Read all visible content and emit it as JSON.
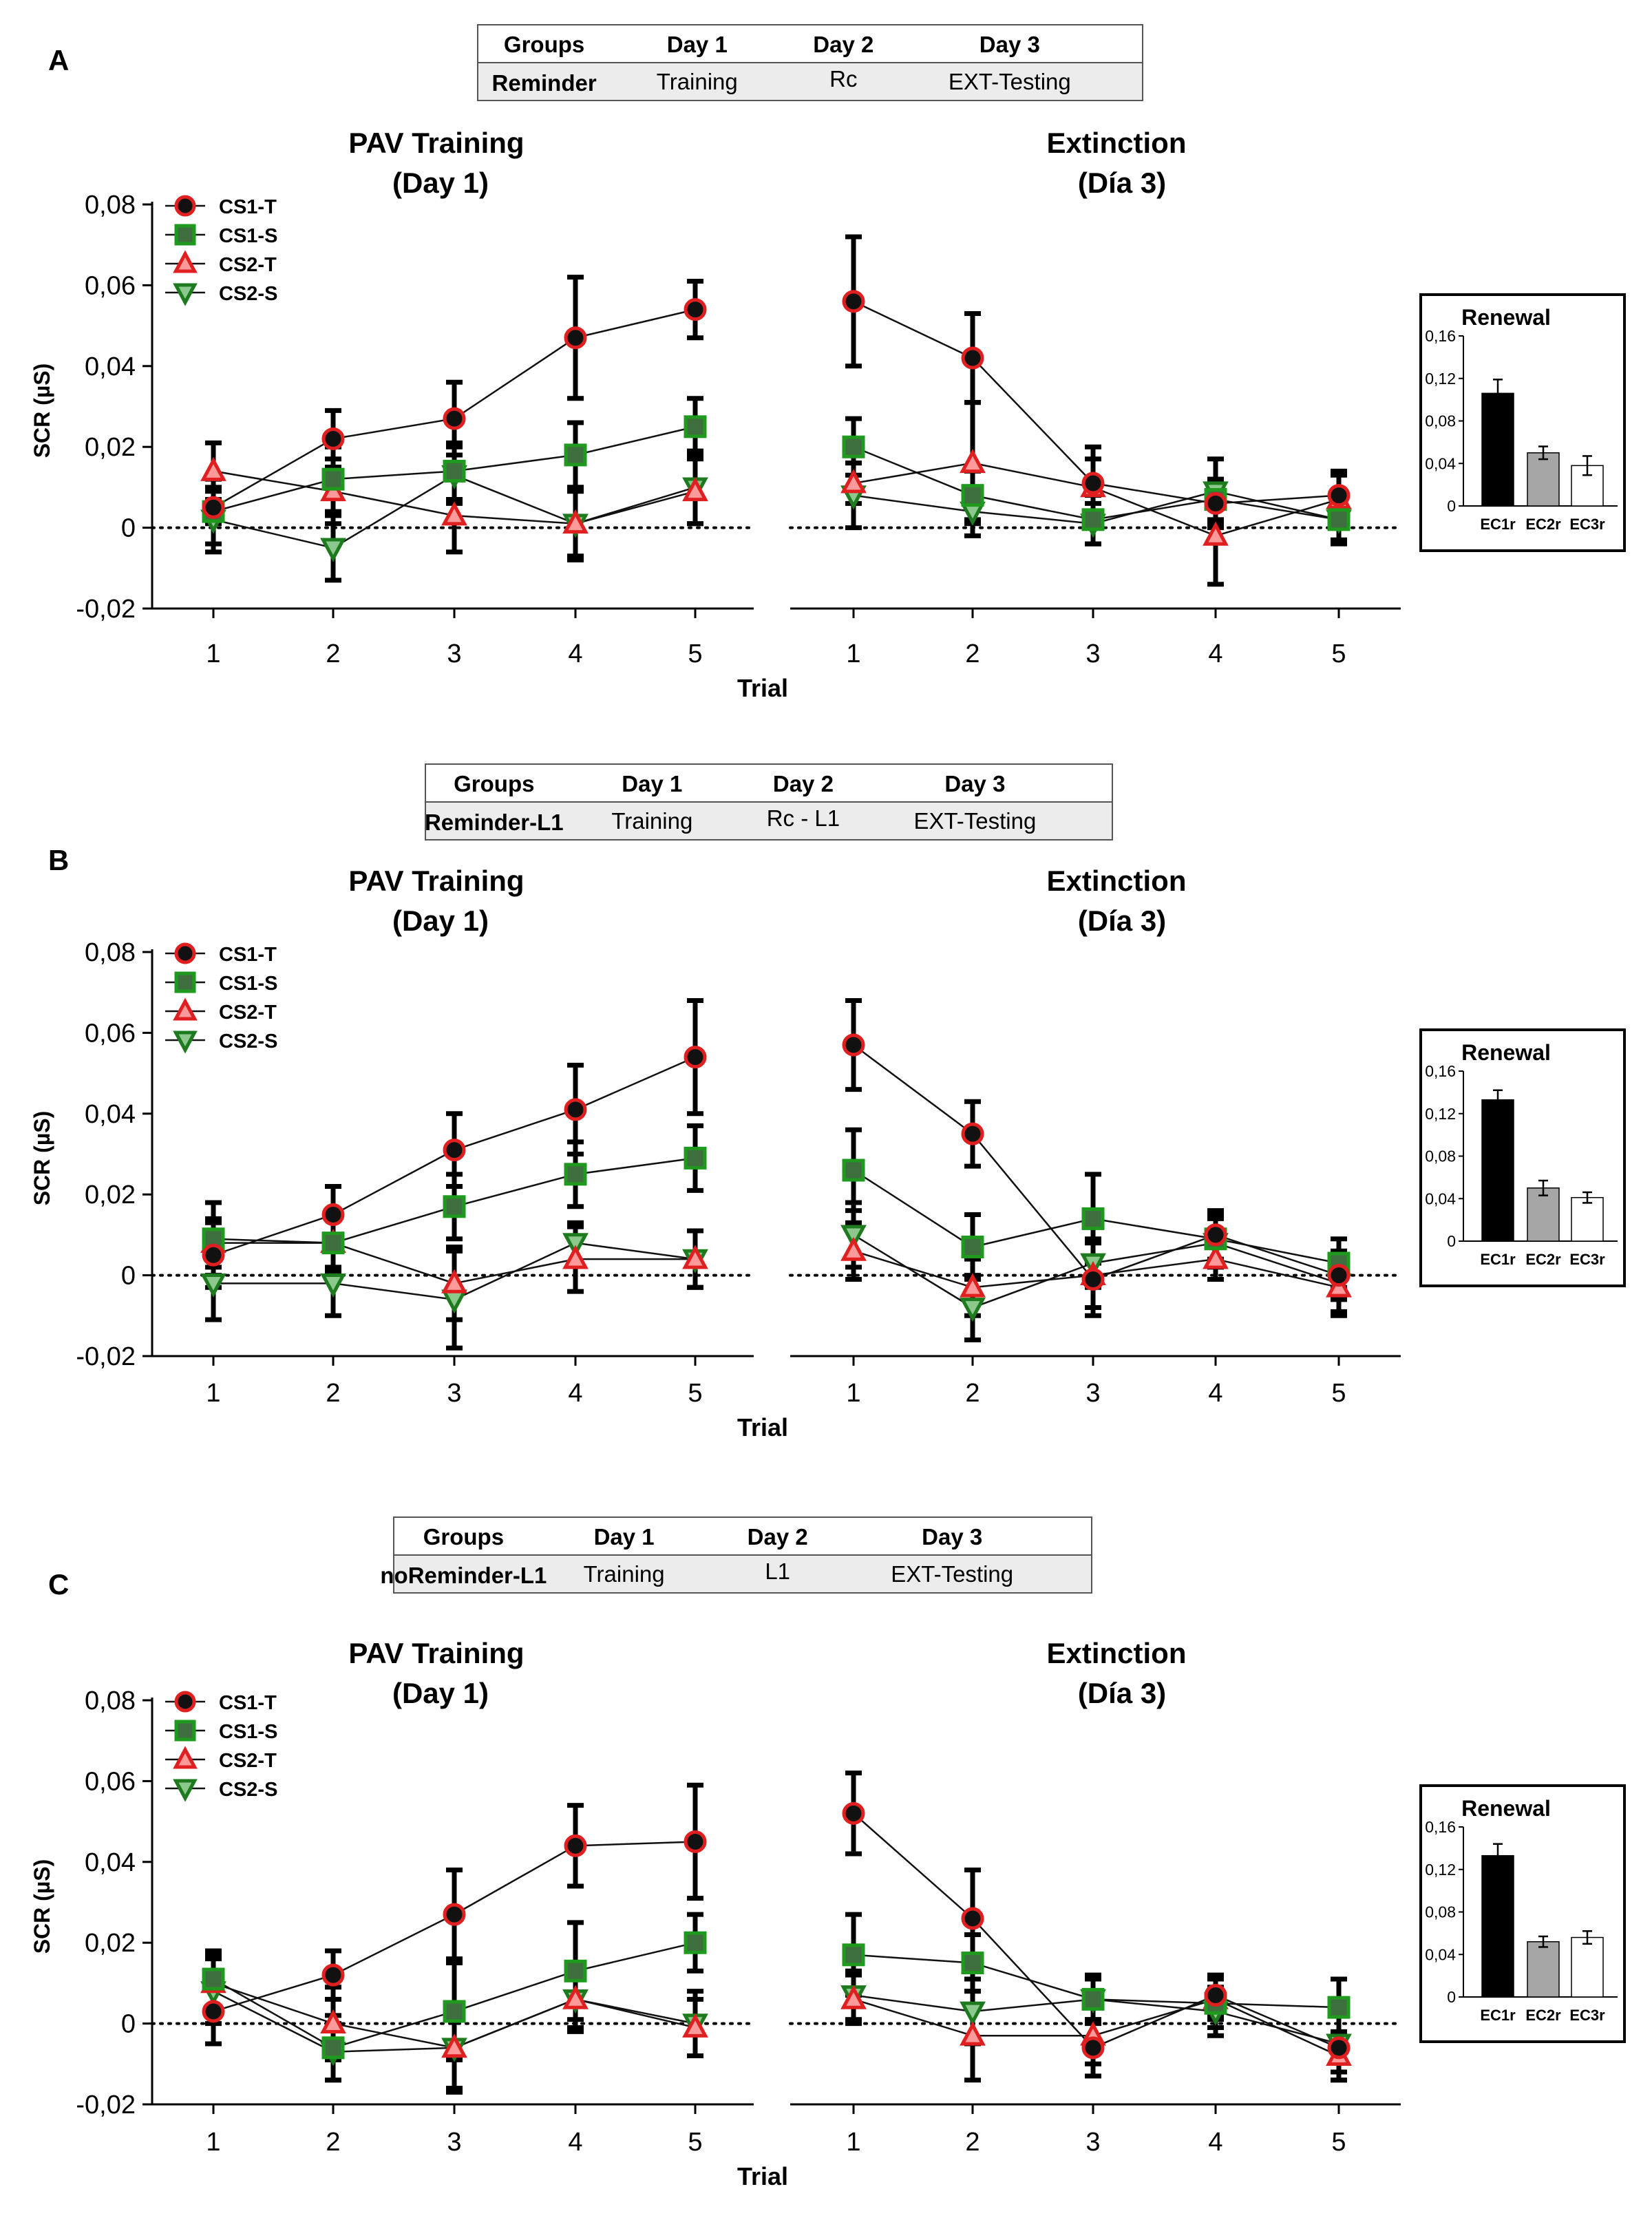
{
  "labels": {
    "y_axis": "SCR (µS)",
    "x_axis": "Trial",
    "header_groups": "Groups",
    "header_day1": "Day 1",
    "header_day2": "Day 2",
    "header_day3": "Day 3"
  },
  "colors": {
    "cs1t_fill": "#111111",
    "cs1t_edge": "#e02020",
    "cs1s_fill": "#3f6e3f",
    "cs1s_edge": "#1f9a1f",
    "cs2t_fill": "#ff9a9a",
    "cs2t_edge": "#e02020",
    "cs2s_fill": "#8cc88c",
    "cs2s_edge": "#1e7a1e",
    "table_bg": "#ececec",
    "bar_ec1r": "#000000",
    "bar_ec2r": "#a6a6a6",
    "bar_ec3r": "#ffffff"
  },
  "chart_data": [
    {
      "panel": "A",
      "type": "line",
      "protocol": {
        "group": "Reminder",
        "day1": "Training",
        "day2": "Rc",
        "day3": "EXT-Testing"
      },
      "left_title": [
        "PAV Training",
        "(Day 1)"
      ],
      "right_title": [
        "Extinction",
        "(Día 3)"
      ],
      "x": [
        1,
        2,
        3,
        4,
        5
      ],
      "x_ticks": [
        "1",
        "2",
        "3",
        "4",
        "5"
      ],
      "ylim": [
        -0.02,
        0.08
      ],
      "y_ticks": [
        "0,08",
        "0,06",
        "0,04",
        "0,02",
        "0",
        "-0,02"
      ],
      "xlabel": "Trial",
      "ylabel": "SCR (µS)",
      "series": [
        {
          "name": "CS1-T",
          "training": [
            0.005,
            0.022,
            0.027,
            0.047,
            0.054
          ],
          "training_err": [
            0.004,
            0.007,
            0.009,
            0.015,
            0.007
          ],
          "extinction": [
            0.056,
            0.042,
            0.011,
            0.006,
            0.008
          ],
          "extinction_err": [
            0.016,
            0.011,
            0.009,
            0.006,
            0.006
          ]
        },
        {
          "name": "CS1-S",
          "training": [
            0.004,
            0.012,
            0.014,
            0.018,
            0.025
          ],
          "training_err": [
            0.008,
            0.008,
            0.007,
            0.008,
            0.007
          ],
          "extinction": [
            0.02,
            0.008,
            0.002,
            0.007,
            0.002
          ],
          "extinction_err": [
            0.007,
            0.006,
            0.006,
            0.005,
            0.006
          ]
        },
        {
          "name": "CS2-T",
          "training": [
            0.014,
            0.009,
            0.003,
            0.001,
            0.009
          ],
          "training_err": [
            0.007,
            0.008,
            0.009,
            0.008,
            0.008
          ],
          "extinction": [
            0.011,
            0.016,
            0.01,
            -0.002,
            0.007
          ],
          "extinction_err": [
            0.005,
            0.015,
            0.007,
            0.012,
            0.006
          ]
        },
        {
          "name": "CS2-S",
          "training": [
            0.002,
            -0.005,
            0.013,
            0.001,
            0.01
          ],
          "training_err": [
            0.008,
            0.008,
            0.007,
            0.009,
            0.009
          ],
          "extinction": [
            0.008,
            0.004,
            0.001,
            0.009,
            0.002
          ],
          "extinction_err": [
            0.008,
            0.006,
            0.005,
            0.008,
            0.005
          ]
        }
      ],
      "inset": {
        "title": "Renewal",
        "categories": [
          "EC1r",
          "EC2r",
          "EC3r"
        ],
        "values": [
          0.106,
          0.05,
          0.038
        ],
        "errors": [
          0.013,
          0.006,
          0.009
        ],
        "ylim": [
          0,
          0.16
        ],
        "y_ticks": [
          "0,16",
          "0,12",
          "0,08",
          "0,04",
          "0"
        ]
      }
    },
    {
      "panel": "B",
      "type": "line",
      "protocol": {
        "group": "Reminder-L1",
        "day1": "Training",
        "day2": "Rc - L1",
        "day3": "EXT-Testing"
      },
      "left_title": [
        "PAV Training",
        "(Day 1)"
      ],
      "right_title": [
        "Extinction",
        "(Día 3)"
      ],
      "x": [
        1,
        2,
        3,
        4,
        5
      ],
      "x_ticks": [
        "1",
        "2",
        "3",
        "4",
        "5"
      ],
      "ylim": [
        -0.02,
        0.08
      ],
      "y_ticks": [
        "0,08",
        "0,06",
        "0,04",
        "0,02",
        "0",
        "-0,02"
      ],
      "xlabel": "Trial",
      "ylabel": "SCR (µS)",
      "series": [
        {
          "name": "CS1-T",
          "training": [
            0.005,
            0.015,
            0.031,
            0.041,
            0.054
          ],
          "training_err": [
            0.008,
            0.007,
            0.009,
            0.011,
            0.014
          ],
          "extinction": [
            0.057,
            0.035,
            -0.001,
            0.01,
            0.0
          ],
          "extinction_err": [
            0.011,
            0.008,
            0.009,
            0.006,
            0.006
          ]
        },
        {
          "name": "CS1-S",
          "training": [
            0.009,
            0.008,
            0.017,
            0.025,
            0.029
          ],
          "training_err": [
            0.009,
            0.007,
            0.008,
            0.008,
            0.008
          ],
          "extinction": [
            0.026,
            0.007,
            0.014,
            0.009,
            0.003
          ],
          "extinction_err": [
            0.01,
            0.008,
            0.011,
            0.006,
            0.006
          ]
        },
        {
          "name": "CS2-T",
          "training": [
            0.008,
            0.008,
            -0.002,
            0.004,
            0.004
          ],
          "training_err": [
            0.006,
            0.006,
            0.009,
            0.008,
            0.007
          ],
          "extinction": [
            0.006,
            -0.003,
            0.0,
            0.004,
            -0.003
          ],
          "extinction_err": [
            0.007,
            0.007,
            0.008,
            0.005,
            0.006
          ]
        },
        {
          "name": "CS2-S",
          "training": [
            -0.002,
            -0.002,
            -0.006,
            0.008,
            0.004
          ],
          "training_err": [
            0.009,
            0.008,
            0.012,
            0.005,
            0.007
          ],
          "extinction": [
            0.01,
            -0.008,
            0.003,
            0.008,
            -0.002
          ],
          "extinction_err": [
            0.008,
            0.008,
            0.006,
            0.006,
            0.008
          ]
        }
      ],
      "inset": {
        "title": "Renewal",
        "categories": [
          "EC1r",
          "EC2r",
          "EC3r"
        ],
        "values": [
          0.133,
          0.05,
          0.041
        ],
        "errors": [
          0.009,
          0.007,
          0.005
        ],
        "ylim": [
          0,
          0.16
        ],
        "y_ticks": [
          "0,16",
          "0,12",
          "0,08",
          "0,04",
          "0"
        ]
      }
    },
    {
      "panel": "C",
      "type": "line",
      "protocol": {
        "group": "noReminder-L1",
        "day1": "Training",
        "day2": "L1",
        "day3": "EXT-Testing"
      },
      "left_title": [
        "PAV Training",
        "(Day 1)"
      ],
      "right_title": [
        "Extinction",
        "(Día 3)"
      ],
      "x": [
        1,
        2,
        3,
        4,
        5
      ],
      "x_ticks": [
        "1",
        "2",
        "3",
        "4",
        "5"
      ],
      "ylim": [
        -0.02,
        0.08
      ],
      "y_ticks": [
        "0,08",
        "0,06",
        "0,04",
        "0,02",
        "0",
        "-0,02"
      ],
      "xlabel": "Trial",
      "ylabel": "SCR (µS)",
      "series": [
        {
          "name": "CS1-T",
          "training": [
            0.003,
            0.012,
            0.027,
            0.044,
            0.045
          ],
          "training_err": [
            0.008,
            0.006,
            0.011,
            0.01,
            0.014
          ],
          "extinction": [
            0.052,
            0.026,
            -0.006,
            0.007,
            -0.006
          ],
          "extinction_err": [
            0.01,
            0.012,
            0.007,
            0.005,
            0.008
          ]
        },
        {
          "name": "CS1-S",
          "training": [
            0.011,
            -0.006,
            0.003,
            0.013,
            0.02
          ],
          "training_err": [
            0.007,
            0.008,
            0.012,
            0.012,
            0.007
          ],
          "extinction": [
            0.017,
            0.015,
            0.006,
            0.005,
            0.004
          ],
          "extinction_err": [
            0.01,
            0.007,
            0.006,
            0.006,
            0.007
          ]
        },
        {
          "name": "CS2-T",
          "training": [
            0.01,
            0.0,
            -0.006,
            0.006,
            -0.001
          ],
          "training_err": [
            0.007,
            0.009,
            0.01,
            0.007,
            0.007
          ],
          "extinction": [
            0.006,
            -0.003,
            -0.003,
            0.006,
            -0.008
          ],
          "extinction_err": [
            0.006,
            0.011,
            0.007,
            0.005,
            0.006
          ]
        },
        {
          "name": "CS2-S",
          "training": [
            0.008,
            -0.007,
            -0.006,
            0.006,
            0.0
          ],
          "training_err": [
            0.008,
            0.007,
            0.011,
            0.008,
            0.008
          ],
          "extinction": [
            0.007,
            0.003,
            0.006,
            0.003,
            -0.005
          ],
          "extinction_err": [
            0.006,
            0.008,
            0.005,
            0.006,
            0.007
          ]
        }
      ],
      "inset": {
        "title": "Renewal",
        "categories": [
          "EC1r",
          "EC2r",
          "EC3r"
        ],
        "values": [
          0.133,
          0.052,
          0.056
        ],
        "errors": [
          0.011,
          0.005,
          0.006
        ],
        "ylim": [
          0,
          0.16
        ],
        "y_ticks": [
          "0,16",
          "0,12",
          "0,08",
          "0,04",
          "0"
        ]
      }
    }
  ]
}
